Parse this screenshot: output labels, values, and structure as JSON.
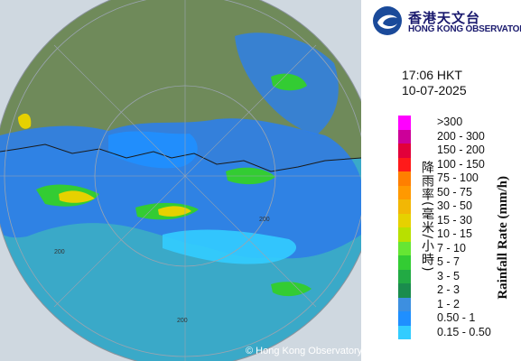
{
  "header": {
    "org_name_zh": "香港天文台",
    "org_name_en": "HONG KONG OBSERVATORY"
  },
  "time": {
    "clock": "17:06 HKT",
    "date": "10-07-2025"
  },
  "legend": {
    "title_zh": "降雨率(毫米/小時)",
    "title_en": "Rainfall Rate (mm/h)",
    "items": [
      {
        "label": ">300",
        "color": "#ff00ff"
      },
      {
        "label": "200 - 300",
        "color": "#cc0099"
      },
      {
        "label": "150 - 200",
        "color": "#e2003a"
      },
      {
        "label": "100 - 150",
        "color": "#ff1a1a"
      },
      {
        "label": "75 - 100",
        "color": "#ff7f00"
      },
      {
        "label": "50 - 75",
        "color": "#ff9900"
      },
      {
        "label": "30 - 50",
        "color": "#f2b705"
      },
      {
        "label": "15 - 30",
        "color": "#e6d100"
      },
      {
        "label": "10 - 15",
        "color": "#b8e000"
      },
      {
        "label": "7 - 10",
        "color": "#66e633"
      },
      {
        "label": "5 - 7",
        "color": "#33cc33"
      },
      {
        "label": "3 - 5",
        "color": "#22aa44"
      },
      {
        "label": "2 - 3",
        "color": "#1a8c4d"
      },
      {
        "label": "1 - 2",
        "color": "#3d8fe0"
      },
      {
        "label": "0.50 - 1",
        "color": "#1f8fff"
      },
      {
        "label": "0.15 - 0.50",
        "color": "#33ccff"
      }
    ]
  },
  "map": {
    "range_labels": [
      "200",
      "200",
      "200"
    ],
    "copyright": "© Hong Kong Observatory"
  }
}
